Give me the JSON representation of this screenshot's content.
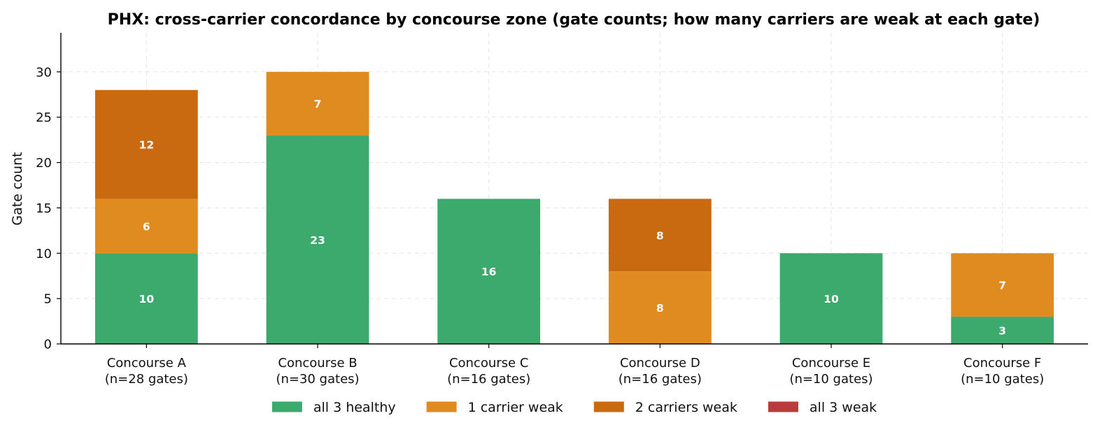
{
  "chart_data": {
    "type": "bar",
    "stacked": true,
    "title": "PHX: cross-carrier concordance by concourse zone (gate counts; how many carriers are weak at each gate)",
    "ylabel": "Gate count",
    "xlabel": "",
    "ylim": [
      0,
      34.3
    ],
    "yticks": [
      0,
      5,
      10,
      15,
      20,
      25,
      30
    ],
    "grid": true,
    "legend_position": "bottom-center",
    "categories": [
      [
        "Concourse A",
        "(n=28 gates)"
      ],
      [
        "Concourse B",
        "(n=30 gates)"
      ],
      [
        "Concourse C",
        "(n=16 gates)"
      ],
      [
        "Concourse D",
        "(n=16 gates)"
      ],
      [
        "Concourse E",
        "(n=10 gates)"
      ],
      [
        "Concourse F",
        "(n=10 gates)"
      ]
    ],
    "series": [
      {
        "name": "all 3 healthy",
        "color": "#3daa6d",
        "values": [
          10,
          23,
          16,
          0,
          10,
          3
        ]
      },
      {
        "name": "1 carrier weak",
        "color": "#e08b1f",
        "values": [
          6,
          7,
          0,
          8,
          0,
          7
        ]
      },
      {
        "name": "2 carriers weak",
        "color": "#c96a11",
        "values": [
          12,
          0,
          0,
          8,
          0,
          0
        ]
      },
      {
        "name": "all 3 weak",
        "color": "#b83c3c",
        "values": [
          0,
          0,
          0,
          0,
          0,
          0
        ]
      }
    ]
  }
}
